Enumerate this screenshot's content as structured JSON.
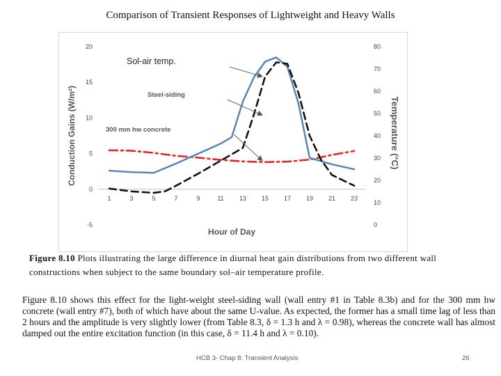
{
  "slide": {
    "title": "Comparison of Transient Responses of Lightweight and Heavy Walls",
    "caption_label": "Figure 8.10",
    "caption_text": "Plots illustrating the large difference in diurnal heat gain distributions from two different wall constructions when subject to the same boundary sol–air temperature profile.",
    "body_text": "Figure 8.10 shows this effect for the light-weight steel-siding wall (wall entry #1 in Table 8.3b) and for the 300 mm hw concrete (wall entry #7), both of which have about the same U-value. As expected, the former has a small time lag of less than 2 hours and the amplitude is very slightly lower (from Table 8.3, δ = 1.3 h and λ = 0.98), whereas the concrete wall has almost damped out the entire excitation function (in this case, δ = 11.4 h and λ = 0.10).",
    "footer": "HCB 3- Chap 8: Transient Analysis",
    "page_number": "26"
  },
  "chart_data": {
    "type": "line",
    "title": "",
    "xlabel": "Hour of Day",
    "ylabel": "Conduction Gains (W/m²)",
    "y2label": "Temperature (°C)",
    "xlim": [
      0,
      24
    ],
    "ylim": [
      -5,
      20
    ],
    "y2lim": [
      0,
      80
    ],
    "x_ticks": [
      1,
      3,
      5,
      7,
      9,
      11,
      13,
      15,
      17,
      19,
      21,
      23
    ],
    "y_ticks": [
      -5,
      0,
      5,
      10,
      15,
      20
    ],
    "y2_ticks": [
      0,
      10,
      20,
      30,
      40,
      50,
      60,
      70,
      80
    ],
    "grid": false,
    "series": [
      {
        "name": "Sol-air temp.",
        "axis": "right",
        "color": "#e8261c",
        "style": "dashdot",
        "x": [
          1,
          3,
          5,
          7,
          9,
          11,
          13,
          15,
          17,
          19,
          21,
          23
        ],
        "y": [
          33.5,
          33.3,
          32.3,
          31.0,
          30.2,
          29.2,
          28.5,
          28.2,
          28.4,
          29.3,
          31.4,
          33.2
        ]
      },
      {
        "name": "Steel-siding",
        "axis": "left",
        "color": "#4f81bd",
        "style": "solid",
        "x": [
          1,
          3,
          5,
          7,
          9,
          11,
          12,
          13,
          14,
          15,
          16,
          17,
          18,
          19,
          21,
          23
        ],
        "y": [
          2.6,
          2.4,
          2.3,
          3.6,
          5.0,
          6.4,
          7.3,
          12.3,
          15.7,
          17.9,
          18.5,
          17.2,
          12.0,
          4.4,
          3.5,
          2.8
        ]
      },
      {
        "name": "300 mm hw concrete",
        "axis": "left",
        "color": "#111111",
        "style": "dashed",
        "x": [
          1,
          3,
          5,
          6,
          7,
          9,
          11,
          13,
          14,
          15,
          16,
          17,
          18,
          19,
          20,
          21,
          23
        ],
        "y": [
          0.1,
          -0.3,
          -0.5,
          -0.3,
          0.5,
          2.2,
          4.0,
          5.8,
          10.5,
          15.8,
          17.8,
          17.6,
          13.5,
          7.5,
          4.2,
          2.0,
          0.5
        ]
      }
    ],
    "annotations": [
      {
        "text": "Sol-air temp.",
        "target_series": "Sol-air temp.",
        "point": [
          15,
          15.8
        ]
      },
      {
        "text": "Steel-siding",
        "target_series": "Steel-siding",
        "point": [
          15,
          10.4
        ]
      },
      {
        "text": "300 mm hw concrete",
        "target_series": "300 mm hw concrete",
        "point": [
          15,
          4.0
        ]
      }
    ]
  }
}
